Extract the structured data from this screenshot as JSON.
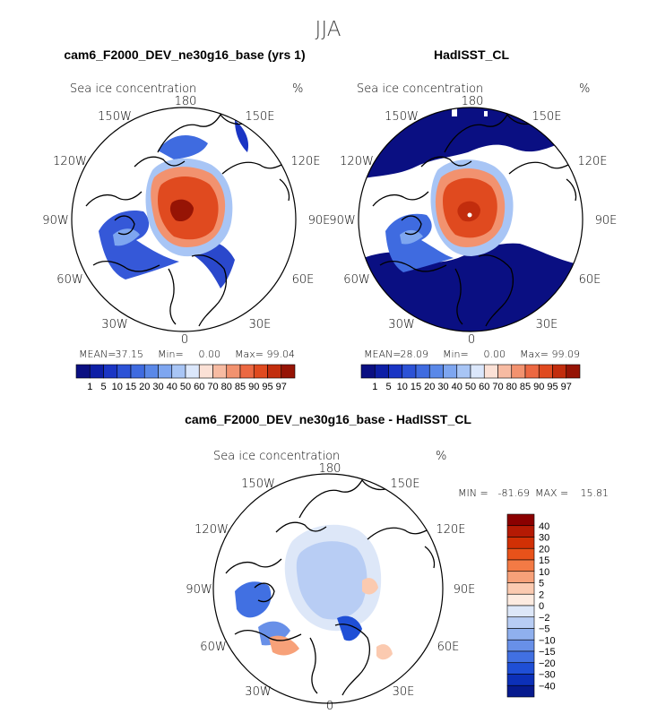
{
  "season": "JJA",
  "chart_data": [
    {
      "type": "heatmap",
      "panel": "model",
      "title": "cam6_F2000_DEV_ne30g16_base (yrs 1)",
      "variable": "Sea ice concentration",
      "units": "%",
      "projection": "north polar stereographic",
      "lon_labels": [
        "180",
        "150E",
        "120E",
        "90E",
        "60E",
        "30E",
        "0",
        "30W",
        "60W",
        "90W",
        "120W",
        "150W"
      ],
      "stats": {
        "mean_label": "MEAN=",
        "mean": "37.15",
        "min_label": "Min=",
        "min": "0.00",
        "max_label": "Max=",
        "max": "99.04"
      },
      "levels": [
        "1",
        "5",
        "10",
        "15",
        "20",
        "30",
        "40",
        "50",
        "60",
        "70",
        "80",
        "85",
        "90",
        "95",
        "97"
      ],
      "colors": [
        "#0a0f82",
        "#0d1fa6",
        "#1a35c4",
        "#2c52d6",
        "#3f6be0",
        "#5a88e8",
        "#7ea6f0",
        "#a8c5f5",
        "#dbe7fb",
        "#fbe1d6",
        "#f7bba2",
        "#f2926f",
        "#ec6842",
        "#e04a1f",
        "#c22d0d",
        "#961405"
      ]
    },
    {
      "type": "heatmap",
      "panel": "obs",
      "title": "HadISST_CL",
      "variable": "Sea ice concentration",
      "units": "%",
      "projection": "north polar stereographic",
      "lon_labels": [
        "180",
        "150E",
        "120E",
        "90E",
        "60E",
        "30E",
        "0",
        "30W",
        "60W",
        "90W",
        "120W",
        "150W"
      ],
      "stats": {
        "mean_label": "MEAN=",
        "mean": "28.09",
        "min_label": "Min=",
        "min": "0.00",
        "max_label": "Max=",
        "max": "99.09"
      },
      "levels": [
        "1",
        "5",
        "10",
        "15",
        "20",
        "30",
        "40",
        "50",
        "60",
        "70",
        "80",
        "85",
        "90",
        "95",
        "97"
      ],
      "colors": [
        "#0a0f82",
        "#0d1fa6",
        "#1a35c4",
        "#2c52d6",
        "#3f6be0",
        "#5a88e8",
        "#7ea6f0",
        "#a8c5f5",
        "#dbe7fb",
        "#fbe1d6",
        "#f7bba2",
        "#f2926f",
        "#ec6842",
        "#e04a1f",
        "#c22d0d",
        "#961405"
      ]
    },
    {
      "type": "heatmap",
      "panel": "diff",
      "title": "cam6_F2000_DEV_ne30g16_base - HadISST_CL",
      "variable": "Sea ice concentration",
      "units": "%",
      "projection": "north polar stereographic",
      "lon_labels": [
        "180",
        "150E",
        "120E",
        "90E",
        "60E",
        "30E",
        "0",
        "30W",
        "60W",
        "90W",
        "120W",
        "150W"
      ],
      "stats": {
        "min_label": "MIN =",
        "min": "-81.69",
        "max_label": "MAX =",
        "max": "15.81"
      },
      "levels": [
        "40",
        "30",
        "20",
        "15",
        "10",
        "5",
        "2",
        "0",
        "−2",
        "−5",
        "−10",
        "−15",
        "−20",
        "−30",
        "−40"
      ],
      "colors": [
        "#8b0000",
        "#b51a04",
        "#d13005",
        "#e8521a",
        "#f37a45",
        "#f7a179",
        "#fbcab0",
        "#fdebe0",
        "#dde7f8",
        "#b8cdf4",
        "#8fb0ee",
        "#6890e8",
        "#4170e2",
        "#1f4fd6",
        "#0c30b8",
        "#061a8e"
      ]
    }
  ]
}
